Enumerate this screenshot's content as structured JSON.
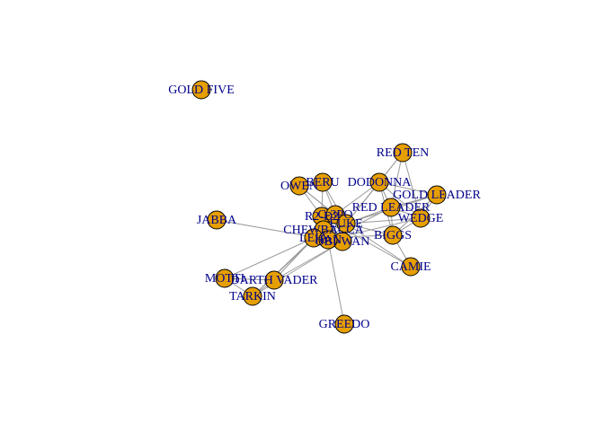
{
  "graph": {
    "style": {
      "node_fill": "#E69F00",
      "node_stroke": "#000000",
      "edge_color": "#9A9A9A",
      "label_color": "#00008B",
      "background": "#FFFFFF"
    },
    "nodes": [
      {
        "id": "gold-five",
        "label": "GOLD FIVE"
      },
      {
        "id": "red-ten",
        "label": "RED TEN"
      },
      {
        "id": "dodonna",
        "label": "DODONNA"
      },
      {
        "id": "beru",
        "label": "BERU"
      },
      {
        "id": "owen",
        "label": "OWEN"
      },
      {
        "id": "gold-leader",
        "label": "GOLD LEADER"
      },
      {
        "id": "red-leader",
        "label": "RED LEADER"
      },
      {
        "id": "wedge",
        "label": "WEDGE"
      },
      {
        "id": "jabba",
        "label": "JABBA"
      },
      {
        "id": "r2-d2",
        "label": "R2-D2"
      },
      {
        "id": "c-3po",
        "label": "C-3PO"
      },
      {
        "id": "luke",
        "label": "LUKE"
      },
      {
        "id": "chewbacca",
        "label": "CHEWBACCA"
      },
      {
        "id": "leia",
        "label": "LEIA"
      },
      {
        "id": "obi-wan",
        "label": "OBI-WAN"
      },
      {
        "id": "han",
        "label": "HAN"
      },
      {
        "id": "biggs",
        "label": "BIGGS"
      },
      {
        "id": "camie",
        "label": "CAMIE"
      },
      {
        "id": "motti",
        "label": "MOTTI"
      },
      {
        "id": "darth-vader",
        "label": "DARTH VADER"
      },
      {
        "id": "tarkin",
        "label": "TARKIN"
      },
      {
        "id": "greedo",
        "label": "GREEDO"
      }
    ],
    "edges": [
      [
        "red-ten",
        "dodonna"
      ],
      [
        "red-ten",
        "red-leader"
      ],
      [
        "red-ten",
        "wedge"
      ],
      [
        "red-ten",
        "luke"
      ],
      [
        "dodonna",
        "gold-leader"
      ],
      [
        "dodonna",
        "red-leader"
      ],
      [
        "dodonna",
        "wedge"
      ],
      [
        "dodonna",
        "luke"
      ],
      [
        "dodonna",
        "biggs"
      ],
      [
        "dodonna",
        "c-3po"
      ],
      [
        "gold-leader",
        "red-leader"
      ],
      [
        "gold-leader",
        "wedge"
      ],
      [
        "gold-leader",
        "luke"
      ],
      [
        "gold-leader",
        "biggs"
      ],
      [
        "red-leader",
        "wedge"
      ],
      [
        "red-leader",
        "luke"
      ],
      [
        "red-leader",
        "biggs"
      ],
      [
        "red-leader",
        "han"
      ],
      [
        "wedge",
        "luke"
      ],
      [
        "wedge",
        "biggs"
      ],
      [
        "wedge",
        "han"
      ],
      [
        "biggs",
        "luke"
      ],
      [
        "biggs",
        "camie"
      ],
      [
        "biggs",
        "leia"
      ],
      [
        "camie",
        "luke"
      ],
      [
        "camie",
        "r2-d2"
      ],
      [
        "beru",
        "owen"
      ],
      [
        "beru",
        "luke"
      ],
      [
        "beru",
        "c-3po"
      ],
      [
        "beru",
        "r2-d2"
      ],
      [
        "owen",
        "luke"
      ],
      [
        "owen",
        "c-3po"
      ],
      [
        "owen",
        "r2-d2"
      ],
      [
        "jabba",
        "han"
      ],
      [
        "r2-d2",
        "c-3po"
      ],
      [
        "r2-d2",
        "luke"
      ],
      [
        "r2-d2",
        "leia"
      ],
      [
        "r2-d2",
        "obi-wan"
      ],
      [
        "r2-d2",
        "chewbacca"
      ],
      [
        "r2-d2",
        "han"
      ],
      [
        "c-3po",
        "luke"
      ],
      [
        "c-3po",
        "leia"
      ],
      [
        "c-3po",
        "obi-wan"
      ],
      [
        "c-3po",
        "chewbacca"
      ],
      [
        "c-3po",
        "han"
      ],
      [
        "luke",
        "leia"
      ],
      [
        "luke",
        "obi-wan"
      ],
      [
        "luke",
        "chewbacca"
      ],
      [
        "luke",
        "han"
      ],
      [
        "leia",
        "obi-wan"
      ],
      [
        "leia",
        "chewbacca"
      ],
      [
        "leia",
        "han"
      ],
      [
        "leia",
        "motti"
      ],
      [
        "leia",
        "darth-vader"
      ],
      [
        "leia",
        "tarkin"
      ],
      [
        "obi-wan",
        "chewbacca"
      ],
      [
        "obi-wan",
        "han"
      ],
      [
        "obi-wan",
        "darth-vader"
      ],
      [
        "chewbacca",
        "han"
      ],
      [
        "han",
        "greedo"
      ],
      [
        "darth-vader",
        "motti"
      ],
      [
        "darth-vader",
        "tarkin"
      ],
      [
        "motti",
        "tarkin"
      ],
      [
        "tarkin",
        "chewbacca"
      ],
      [
        "tarkin",
        "obi-wan"
      ]
    ]
  }
}
